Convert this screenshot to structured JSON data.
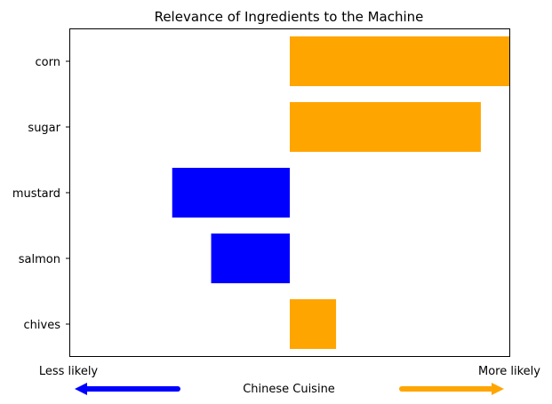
{
  "chart_data": {
    "type": "bar",
    "orientation": "horizontal",
    "title": "Relevance of Ingredients to the Machine",
    "categories": [
      "corn",
      "sugar",
      "mustard",
      "salmon",
      "chives"
    ],
    "values": [
      0.3,
      0.26,
      -0.16,
      -0.107,
      0.063
    ],
    "xlim": [
      -0.3,
      0.3
    ],
    "grid": false,
    "colors": {
      "positive": "#FFA500",
      "negative": "#0000FF",
      "axis": "#000000"
    },
    "axis_end_labels": {
      "left": "Less likely",
      "right": "More likely"
    },
    "class_label": "Chinese Cuisine",
    "arrows": {
      "left_color": "#0000FF",
      "right_color": "#FFA500"
    }
  }
}
